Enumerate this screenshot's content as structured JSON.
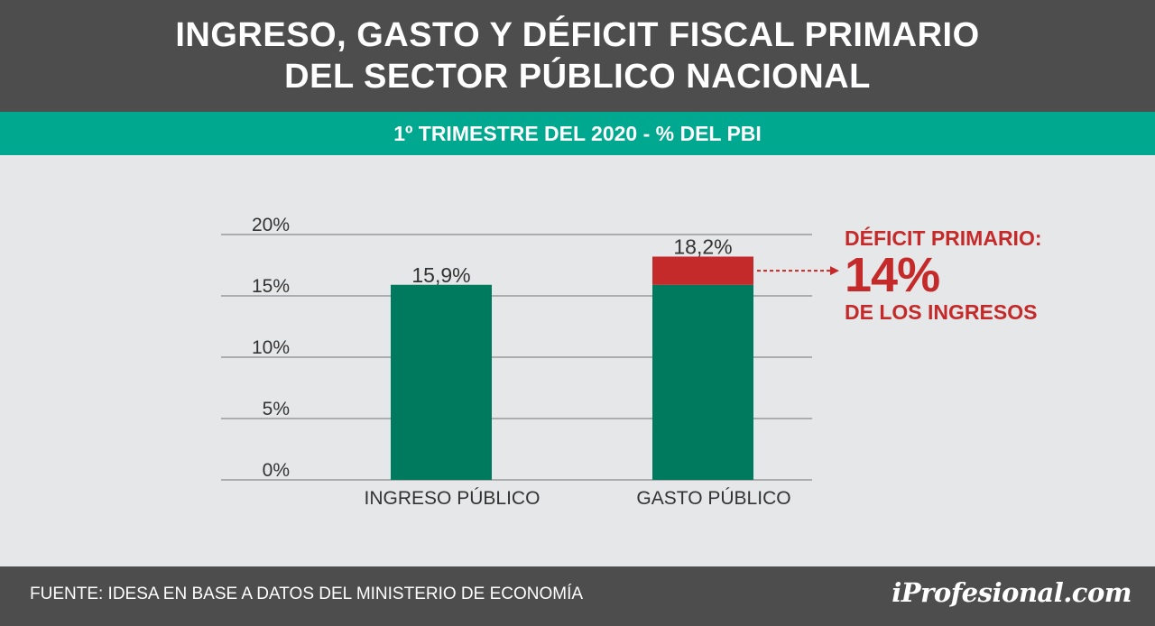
{
  "header": {
    "title_line1": "INGRESO, GASTO Y DÉFICIT FISCAL PRIMARIO",
    "title_line2": "DEL SECTOR PÚBLICO NACIONAL"
  },
  "subtitle": "1º TRIMESTRE DEL 2020 - % DEL PBI",
  "chart_data": {
    "type": "bar",
    "categories": [
      "INGRESO PÚBLICO",
      "GASTO PÚBLICO"
    ],
    "series": [
      {
        "values": [
          15.9,
          15.9
        ]
      },
      {
        "values": [
          0,
          2.3
        ]
      }
    ],
    "totals": [
      15.9,
      18.2
    ],
    "data_labels": [
      "15,9%",
      "18,2%"
    ],
    "ylim": [
      0,
      20
    ],
    "yticks": [
      0,
      5,
      10,
      15,
      20
    ],
    "ytick_labels": [
      "0%",
      "5%",
      "10%",
      "15%",
      "20%"
    ],
    "grid": true,
    "colors": {
      "base": "#007a5e",
      "stack": "#c52a2a"
    }
  },
  "callout": {
    "line1": "DÉFICIT PRIMARIO:",
    "value": "14%",
    "line3": "DE LOS INGRESOS",
    "color": "#c52a2a"
  },
  "footer": {
    "source": "FUENTE: IDESA EN BASE A DATOS DEL MINISTERIO DE ECONOMÍA",
    "logo": "iProfesional.com"
  }
}
